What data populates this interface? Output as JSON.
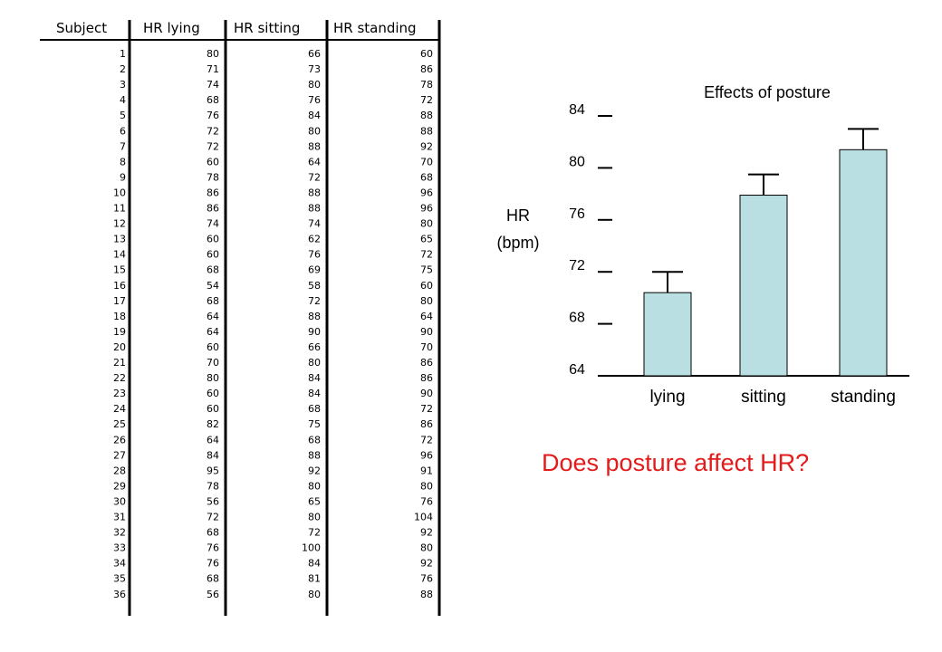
{
  "table": {
    "headers": [
      "Subject",
      "HR lying",
      "HR sitting",
      "HR standing"
    ],
    "rows": [
      [
        "1",
        "80",
        "66",
        "60"
      ],
      [
        "2",
        "71",
        "73",
        "86"
      ],
      [
        "3",
        "74",
        "80",
        "78"
      ],
      [
        "4",
        "68",
        "76",
        "72"
      ],
      [
        "5",
        "76",
        "84",
        "88"
      ],
      [
        "6",
        "72",
        "80",
        "88"
      ],
      [
        "7",
        "72",
        "88",
        "92"
      ],
      [
        "8",
        "60",
        "64",
        "70"
      ],
      [
        "9",
        "78",
        "72",
        "68"
      ],
      [
        "10",
        "86",
        "88",
        "96"
      ],
      [
        "11",
        "86",
        "88",
        "96"
      ],
      [
        "12",
        "74",
        "74",
        "80"
      ],
      [
        "13",
        "60",
        "62",
        "65"
      ],
      [
        "14",
        "60",
        "76",
        "72"
      ],
      [
        "15",
        "68",
        "69",
        "75"
      ],
      [
        "16",
        "54",
        "58",
        "60"
      ],
      [
        "17",
        "68",
        "72",
        "80"
      ],
      [
        "18",
        "64",
        "88",
        "64"
      ],
      [
        "19",
        "64",
        "90",
        "90"
      ],
      [
        "20",
        "60",
        "66",
        "70"
      ],
      [
        "21",
        "70",
        "80",
        "86"
      ],
      [
        "22",
        "80",
        "84",
        "86"
      ],
      [
        "23",
        "60",
        "84",
        "90"
      ],
      [
        "24",
        "60",
        "68",
        "72"
      ],
      [
        "25",
        "82",
        "75",
        "86"
      ],
      [
        "26",
        "64",
        "68",
        "72"
      ],
      [
        "27",
        "84",
        "88",
        "96"
      ],
      [
        "28",
        "95",
        "92",
        "91"
      ],
      [
        "29",
        "78",
        "80",
        "80"
      ],
      [
        "30",
        "56",
        "65",
        "76"
      ],
      [
        "31",
        "72",
        "80",
        "104"
      ],
      [
        "32",
        "68",
        "72",
        "92"
      ],
      [
        "33",
        "76",
        "100",
        "80"
      ],
      [
        "34",
        "76",
        "84",
        "92"
      ],
      [
        "35",
        "68",
        "81",
        "76"
      ],
      [
        "36",
        "56",
        "80",
        "88"
      ]
    ]
  },
  "chart_data": {
    "type": "bar",
    "title": "Effects of posture",
    "ylabel": [
      "HR",
      "(bpm)"
    ],
    "xlabel": "",
    "categories": [
      "lying",
      "sitting",
      "standing"
    ],
    "values": [
      70.4,
      77.9,
      81.4
    ],
    "error_upper": [
      72.0,
      79.5,
      83.0
    ],
    "ylim": [
      64,
      84
    ],
    "yticks": [
      64,
      68,
      72,
      76,
      80,
      84
    ],
    "bar_color": "#b9dfe2",
    "legend": "none",
    "grid": false
  },
  "question": "Does posture affect HR?",
  "colors": {
    "question": "#e31b1b",
    "bar_fill": "#b9dfe2",
    "ink": "#000000"
  }
}
